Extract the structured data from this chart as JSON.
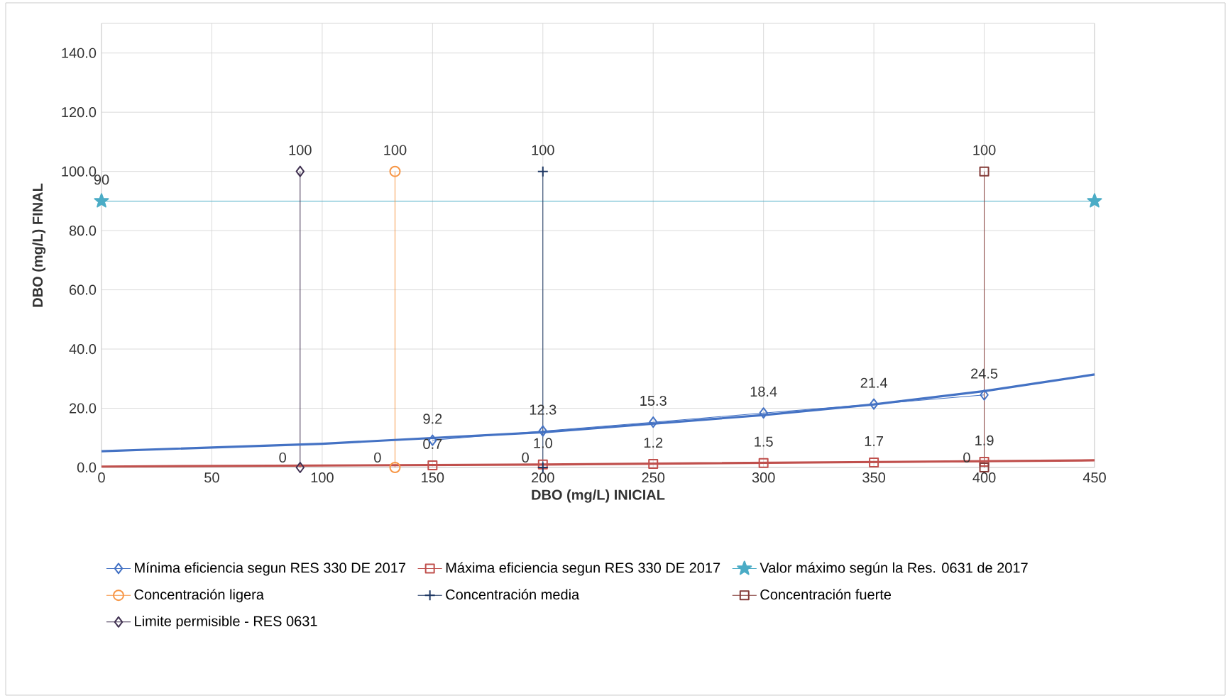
{
  "chart_data": {
    "type": "line",
    "xlabel": "DBO (mg/L)  INICIAL",
    "ylabel": "DBO (mg/L) FINAL",
    "xlim": [
      0,
      450
    ],
    "xticks": [
      0,
      50,
      100,
      150,
      200,
      250,
      300,
      350,
      400,
      450
    ],
    "ylim": [
      0,
      150
    ],
    "yticks": [
      {
        "value": 0,
        "label": "0.0"
      },
      {
        "value": 20,
        "label": "20.0"
      },
      {
        "value": 40,
        "label": "40.0"
      },
      {
        "value": 60,
        "label": "60.0"
      },
      {
        "value": 80,
        "label": "80.0"
      },
      {
        "value": 100,
        "label": "100.0"
      },
      {
        "value": 120,
        "label": "120.0"
      },
      {
        "value": 140,
        "label": "140.0"
      }
    ],
    "grid": true,
    "legend": "bottom",
    "series": [
      {
        "name": "Mínima eficiencia segun RES 330 DE 2017",
        "color": "#4472c4",
        "marker": "diamond",
        "x": [
          150,
          200,
          250,
          300,
          350,
          400
        ],
        "values": [
          9.2,
          12.3,
          15.3,
          18.4,
          21.4,
          24.5
        ],
        "value_labels": [
          "9.2",
          "12.3",
          "15.3",
          "18.4",
          "21.4",
          "24.5"
        ]
      },
      {
        "name": "Máxima eficiencia segun RES 330 DE 2017",
        "color": "#c0504d",
        "marker": "square",
        "x": [
          150,
          200,
          250,
          300,
          350,
          400
        ],
        "values": [
          0.7,
          1.0,
          1.2,
          1.5,
          1.7,
          1.9
        ],
        "value_labels": [
          "0.7",
          "1.0",
          "1.2",
          "1.5",
          "1.7",
          "1.9"
        ]
      },
      {
        "name": "Valor máximo según la Res. 0631 de 2017",
        "color": "#4bacc6",
        "marker": "star",
        "x": [
          0,
          450
        ],
        "values": [
          90,
          90
        ],
        "value_labels": [
          "90",
          null
        ]
      },
      {
        "name": "Concentración ligera",
        "color": "#f79646",
        "marker": "circle",
        "x": [
          133,
          133
        ],
        "values": [
          0,
          100
        ],
        "value_labels": [
          "0",
          "100"
        ]
      },
      {
        "name": "Concentración media",
        "color": "#1f3864",
        "marker": "cross",
        "x": [
          200,
          200
        ],
        "values": [
          0,
          100
        ],
        "value_labels": [
          "0",
          "100"
        ]
      },
      {
        "name": "Concentración fuerte",
        "color": "#843c39",
        "marker": "square",
        "x": [
          400,
          400
        ],
        "values": [
          0,
          100
        ],
        "value_labels": [
          "0",
          "100"
        ]
      },
      {
        "name": "Limite permisible - RES 0631",
        "color": "#403151",
        "marker": "diamond",
        "x": [
          90,
          90
        ],
        "values": [
          0,
          100
        ],
        "value_labels": [
          "0",
          "100"
        ]
      },
      {
        "color": "#4472c4",
        "marker": "none",
        "x": [
          0,
          100,
          200,
          300,
          350,
          400,
          450
        ],
        "values": [
          5.5,
          8.0,
          11.9,
          17.7,
          21.3,
          25.8,
          31.4
        ]
      },
      {
        "color": "#c0504d",
        "marker": "none",
        "x": [
          0,
          200,
          450
        ],
        "values": [
          0.3,
          1.0,
          2.4
        ]
      }
    ]
  }
}
